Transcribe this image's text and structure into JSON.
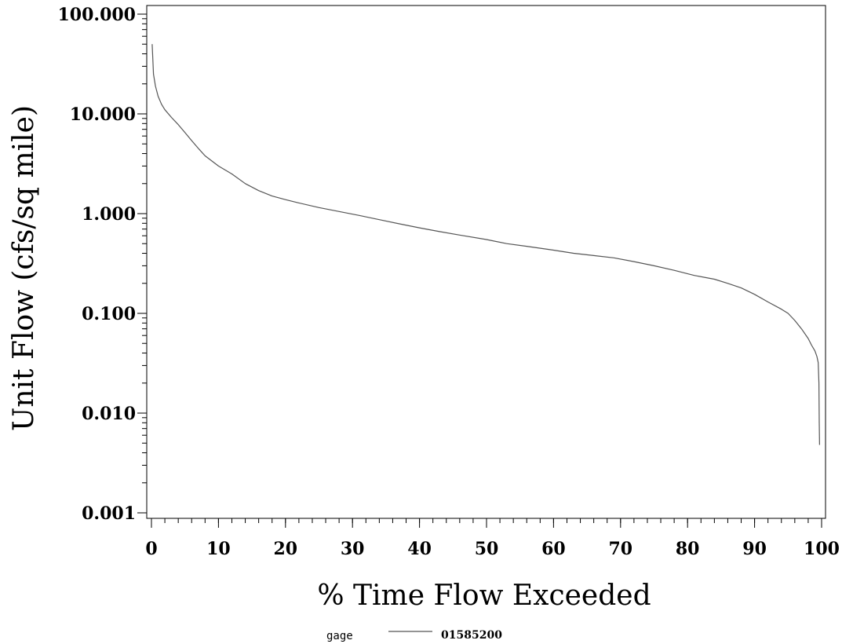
{
  "chart_data": {
    "type": "line",
    "title": "",
    "xlabel": "% Time Flow Exceeded",
    "ylabel": "Unit Flow (cfs/sq mile)",
    "xlim": [
      0,
      100
    ],
    "ylim": [
      0.001,
      100
    ],
    "y_scale": "log",
    "grid": false,
    "x_ticks": [
      0,
      10,
      20,
      30,
      40,
      50,
      60,
      70,
      80,
      90,
      100
    ],
    "x_tick_labels": [
      "0",
      "10",
      "20",
      "30",
      "40",
      "50",
      "60",
      "70",
      "80",
      "90",
      "100"
    ],
    "x_minor_step": 2,
    "y_ticks": [
      0.001,
      0.01,
      0.1,
      1,
      10,
      100
    ],
    "y_tick_labels": [
      "0.001",
      "0.010",
      "0.100",
      "1.000",
      "10.000",
      "100.000"
    ],
    "legend": {
      "title": "gage",
      "position": "bottom-center",
      "entries": [
        {
          "label": "01585200",
          "color": "#555555"
        }
      ]
    },
    "series": [
      {
        "name": "01585200",
        "color": "#555555",
        "x": [
          0.1,
          0.3,
          0.6,
          1,
          1.5,
          2,
          3,
          4,
          5,
          6,
          7,
          8,
          10,
          12,
          14,
          16,
          18,
          20,
          22,
          25,
          28,
          31,
          34,
          37,
          40,
          43,
          46,
          50,
          53,
          56,
          60,
          63,
          66,
          69,
          72,
          75,
          78,
          81,
          84,
          86,
          88,
          90,
          92,
          94,
          95,
          96,
          97,
          98,
          98.5,
          99,
          99.3,
          99.5,
          99.6,
          99.65,
          99.7
        ],
        "y": [
          50,
          25,
          19,
          15,
          12.5,
          11,
          9.2,
          7.8,
          6.5,
          5.4,
          4.5,
          3.8,
          3.0,
          2.5,
          2.0,
          1.7,
          1.5,
          1.38,
          1.28,
          1.15,
          1.05,
          0.96,
          0.87,
          0.79,
          0.72,
          0.66,
          0.61,
          0.55,
          0.5,
          0.47,
          0.43,
          0.4,
          0.38,
          0.36,
          0.33,
          0.3,
          0.27,
          0.24,
          0.22,
          0.2,
          0.18,
          0.155,
          0.13,
          0.11,
          0.1,
          0.085,
          0.07,
          0.056,
          0.048,
          0.042,
          0.037,
          0.032,
          0.02,
          0.008,
          0.0048
        ]
      }
    ]
  }
}
